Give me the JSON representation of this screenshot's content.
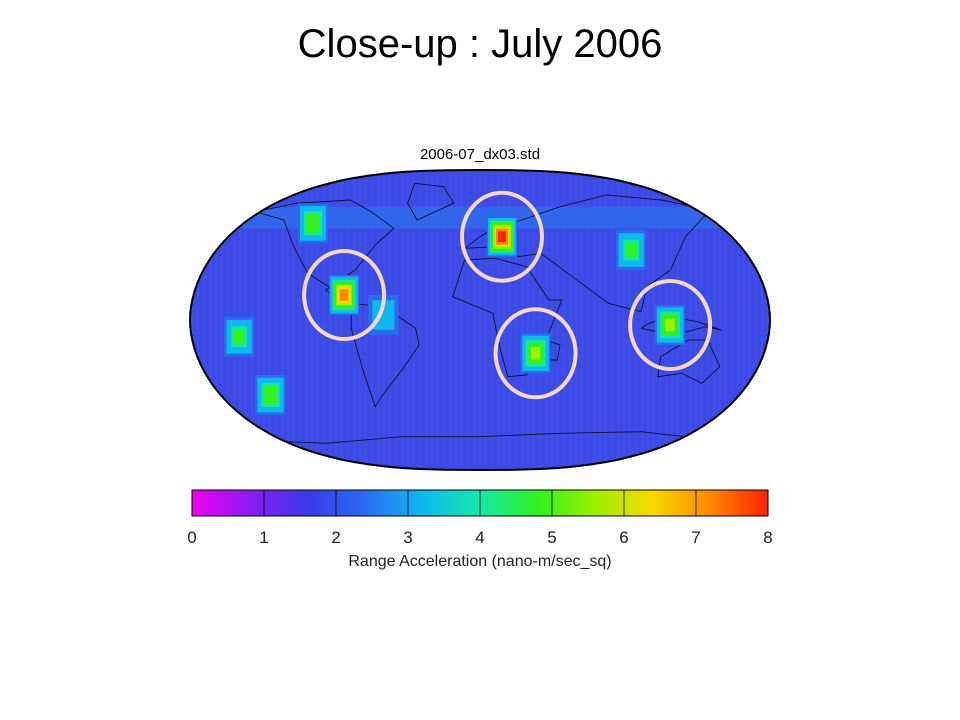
{
  "slide": {
    "title": "Close-up : July 2006"
  },
  "chart_data": {
    "type": "heatmap",
    "title": "2006-07_dx03.std",
    "projection": "Robinson world map",
    "colorbar": {
      "label": "Range Acceleration (nano-m/sec_sq)",
      "min": 0,
      "max": 8,
      "ticks": [
        "0",
        "1",
        "2",
        "3",
        "4",
        "5",
        "6",
        "7",
        "8"
      ],
      "colors": [
        "#ee00ee",
        "#8a1cf0",
        "#3a3ae8",
        "#2a6cf0",
        "#10b8f0",
        "#14e8a8",
        "#30f020",
        "#9cf000",
        "#f8d800",
        "#ff8800",
        "#ff2000"
      ]
    },
    "background_level": 2,
    "hotspots": [
      {
        "region": "Central America / Caribbean",
        "lat": 15,
        "lon": -85,
        "value": 7.0,
        "circled": true
      },
      {
        "region": "Central Europe",
        "lat": 50,
        "lon": 15,
        "value": 7.8,
        "circled": true
      },
      {
        "region": "Southern Africa / Madagascar",
        "lat": -20,
        "lon": 35,
        "value": 5.5,
        "circled": true
      },
      {
        "region": "Indonesia / New Guinea",
        "lat": -3,
        "lon": 118,
        "value": 5.5,
        "circled": true
      },
      {
        "region": "Western North America",
        "lat": 58,
        "lon": -118,
        "value": 5.0,
        "circled": false
      },
      {
        "region": "East Asia",
        "lat": 42,
        "lon": 100,
        "value": 4.5,
        "circled": false
      },
      {
        "region": "South America",
        "lat": 3,
        "lon": -60,
        "value": 3.5,
        "circled": false
      },
      {
        "region": "Southern Ocean",
        "lat": -45,
        "lon": -140,
        "value": 5.0,
        "circled": false
      },
      {
        "region": "Eastern Pacific",
        "lat": -10,
        "lon": -150,
        "value": 4.5,
        "circled": false
      }
    ]
  }
}
